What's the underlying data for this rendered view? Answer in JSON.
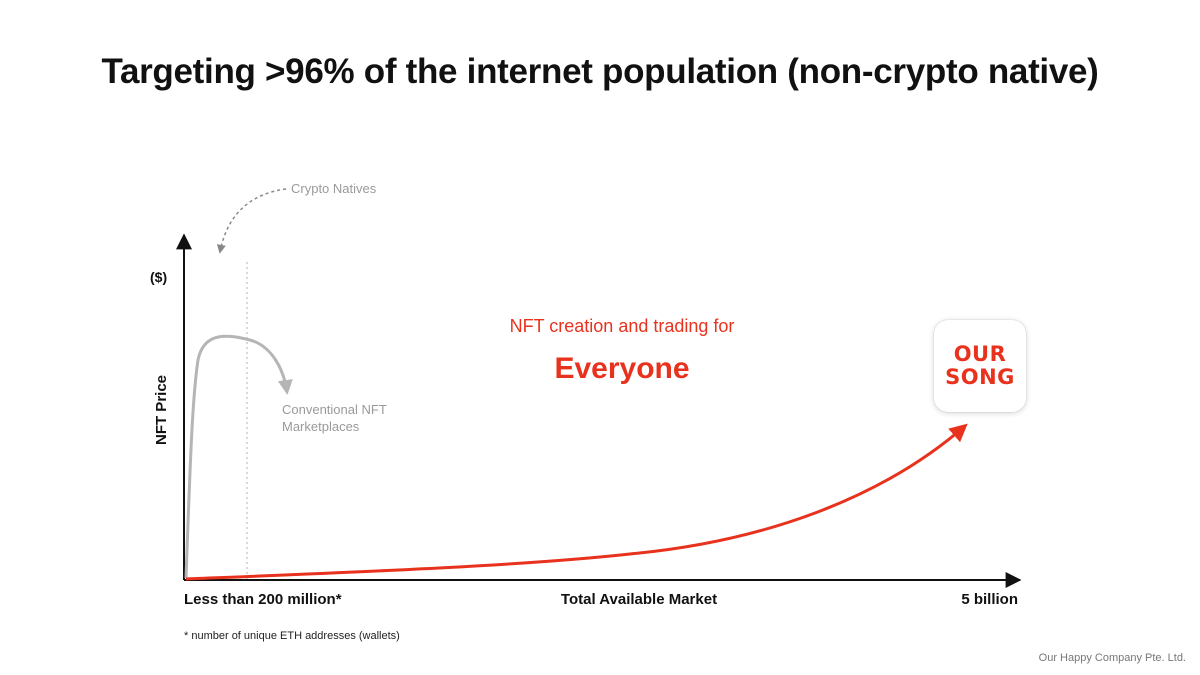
{
  "title": "Targeting >96% of the internet population (non-crypto native)",
  "callouts": {
    "crypto_natives": "Crypto Natives",
    "conventional_line1": "Conventional NFT",
    "conventional_line2": "Marketplaces",
    "headline": "NFT creation and trading for",
    "everyone": "Everyone"
  },
  "axes": {
    "y_unit": "($)",
    "y_label": "NFT Price",
    "x_left": "Less than 200 million*",
    "x_center": "Total Available Market",
    "x_right": "5 billion"
  },
  "logo": {
    "line1": "OUR",
    "line2": "SONG"
  },
  "footnote": "* number of unique ETH addresses (wallets)",
  "company": "Our Happy Company Pte. Ltd.",
  "colors": {
    "accent": "#e8321e",
    "muted": "#b5b5b5",
    "text": "#111111"
  }
}
